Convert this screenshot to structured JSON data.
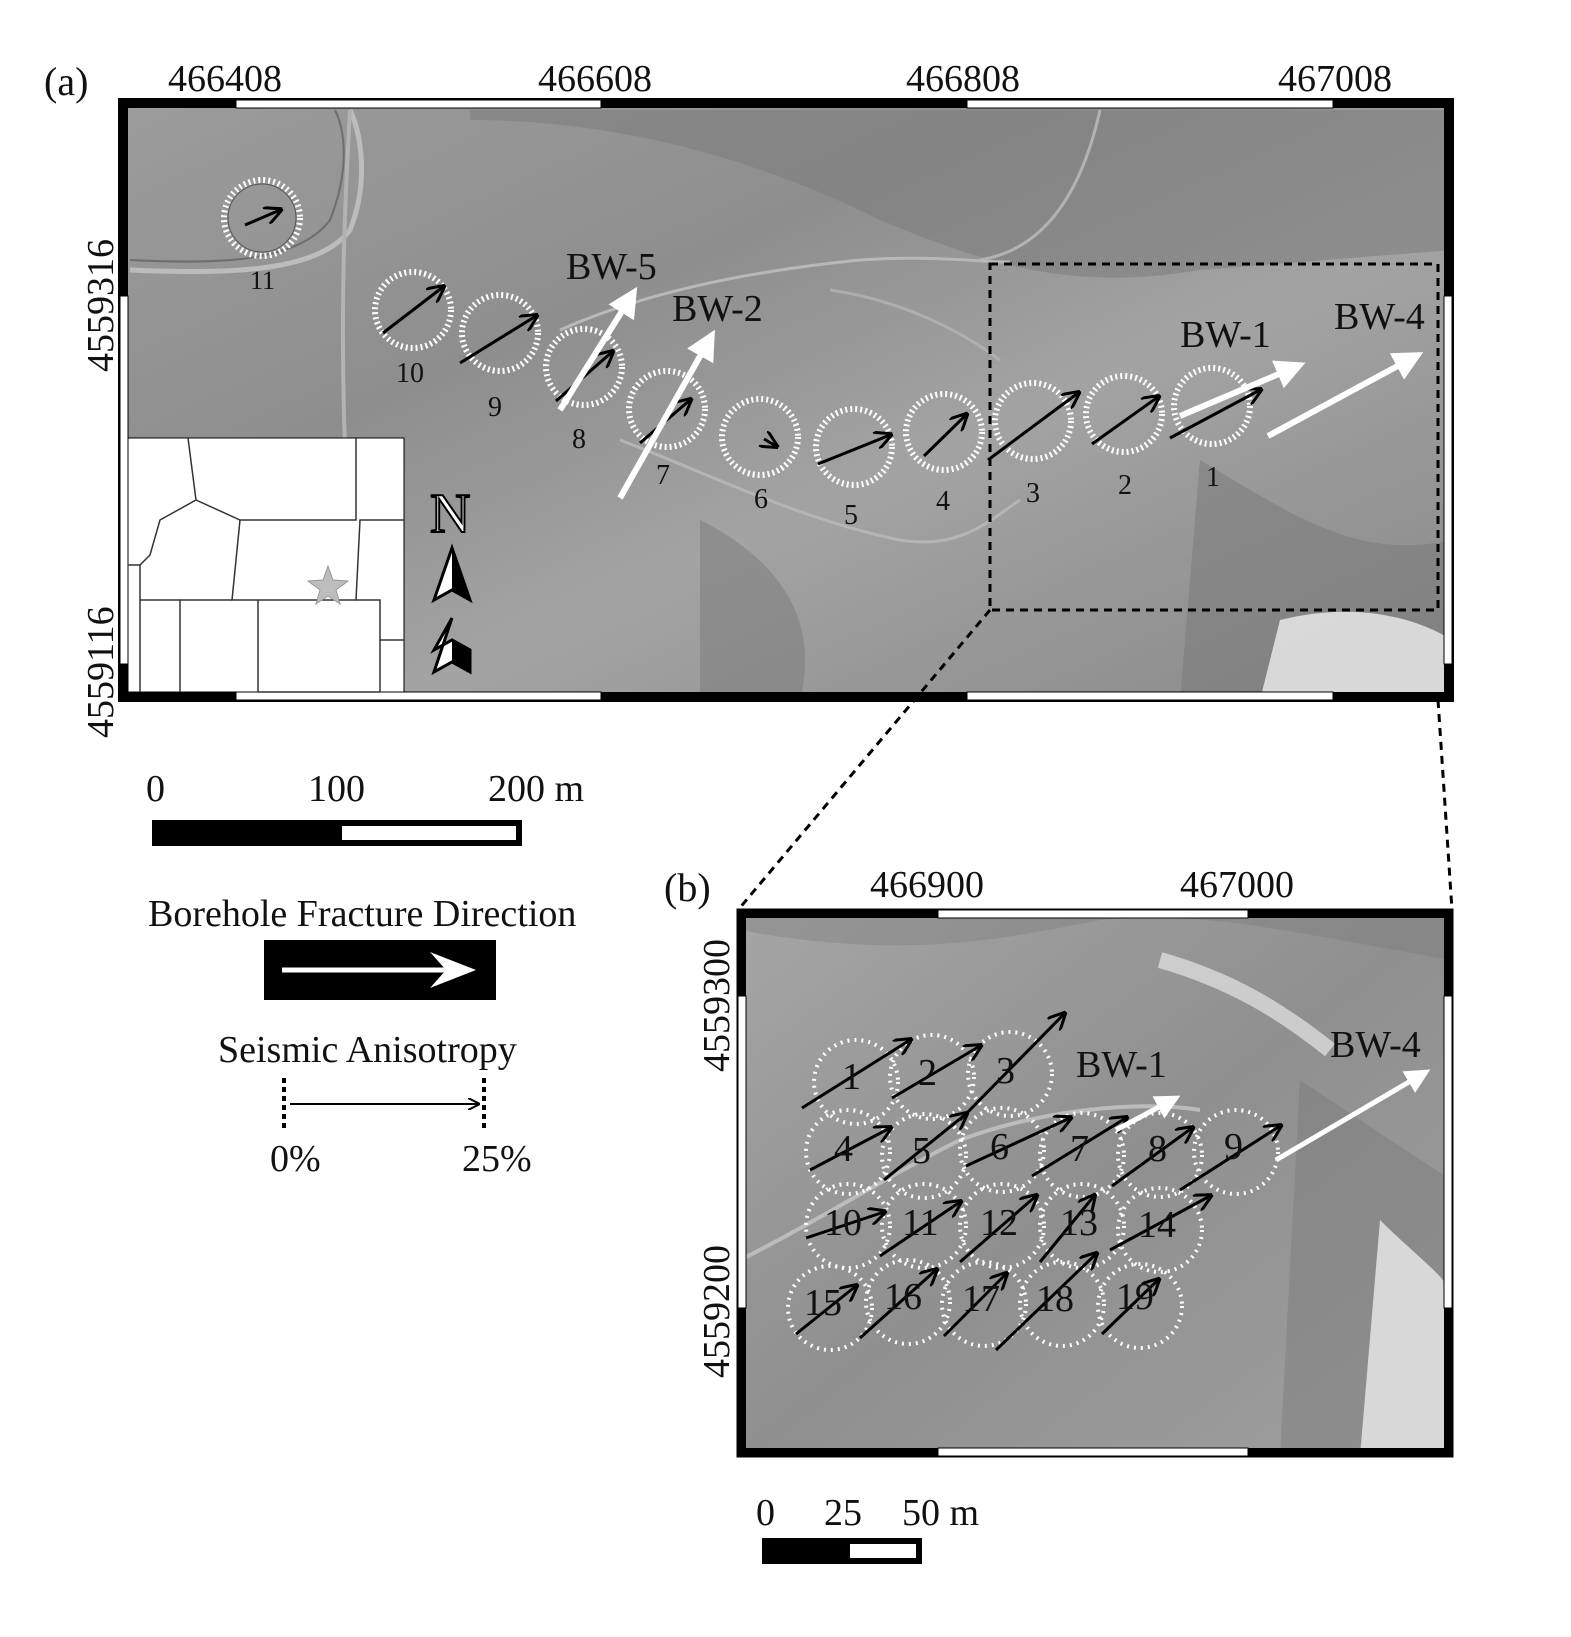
{
  "panel_a": {
    "letter": "(a)",
    "x_ticks": [
      "466408",
      "466608",
      "466808",
      "467008"
    ],
    "y_ticks": [
      "4559316",
      "4559116"
    ],
    "wells": [
      "BW-5",
      "BW-2",
      "BW-1",
      "BW-4"
    ],
    "sites": [
      {
        "id": "1",
        "anisotropy_pct": 11
      },
      {
        "id": "2",
        "anisotropy_pct": 9
      },
      {
        "id": "3",
        "anisotropy_pct": 11
      },
      {
        "id": "4",
        "anisotropy_pct": 6
      },
      {
        "id": "5",
        "anisotropy_pct": 9
      },
      {
        "id": "6",
        "anisotropy_pct": 2
      },
      {
        "id": "7",
        "anisotropy_pct": 6
      },
      {
        "id": "8",
        "anisotropy_pct": 7
      },
      {
        "id": "9",
        "anisotropy_pct": 9
      },
      {
        "id": "10",
        "anisotropy_pct": 10
      },
      {
        "id": "11",
        "anisotropy_pct": 4
      }
    ],
    "north_label": "N"
  },
  "panel_b": {
    "letter": "(b)",
    "x_ticks": [
      "466900",
      "467000"
    ],
    "y_ticks": [
      "4559300",
      "4559200"
    ],
    "wells": [
      "BW-1",
      "BW-4"
    ],
    "sites": [
      "1",
      "2",
      "3",
      "4",
      "5",
      "6",
      "7",
      "8",
      "9",
      "10",
      "11",
      "12",
      "13",
      "14",
      "15",
      "16",
      "17",
      "18",
      "19"
    ]
  },
  "scale_a": {
    "labels": [
      "0",
      "100",
      "200 m"
    ]
  },
  "scale_b": {
    "labels": [
      "0",
      "25",
      "50 m"
    ]
  },
  "legend": {
    "borehole_title": "Borehole Fracture Direction",
    "seismic_title": "Seismic Anisotropy",
    "seismic_min": "0%",
    "seismic_max": "25%"
  },
  "colors": {
    "terrain": "#9a9a9a",
    "arrow_black": "#000000",
    "arrow_white": "#ffffff"
  }
}
